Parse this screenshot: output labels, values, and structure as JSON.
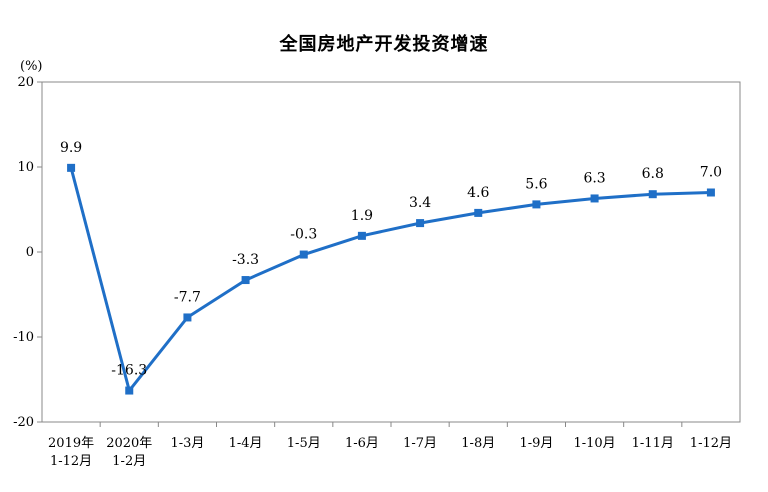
{
  "chart_data": {
    "type": "line",
    "title": "全国房地产开发投资增速",
    "ylabel": "(%)",
    "xlabel": "",
    "ylim": [
      -20,
      20
    ],
    "yticks": [
      -20,
      -10,
      0,
      10,
      20
    ],
    "grid": false,
    "categories": [
      [
        "2019年",
        "1-12月"
      ],
      [
        "2020年",
        "1-2月"
      ],
      [
        "1-3月"
      ],
      [
        "1-4月"
      ],
      [
        "1-5月"
      ],
      [
        "1-6月"
      ],
      [
        "1-7月"
      ],
      [
        "1-8月"
      ],
      [
        "1-9月"
      ],
      [
        "1-10月"
      ],
      [
        "1-11月"
      ],
      [
        "1-12月"
      ]
    ],
    "series": [
      {
        "values": [
          9.9,
          -16.3,
          -7.7,
          -3.3,
          -0.3,
          1.9,
          3.4,
          4.6,
          5.6,
          6.3,
          6.8,
          7.0
        ],
        "labels": [
          "9.9",
          "-16.3",
          "-7.7",
          "-3.3",
          "-0.3",
          "1.9",
          "3.4",
          "4.6",
          "5.6",
          "6.3",
          "6.8",
          "7.0"
        ],
        "color": "#1f6fc7"
      }
    ]
  }
}
